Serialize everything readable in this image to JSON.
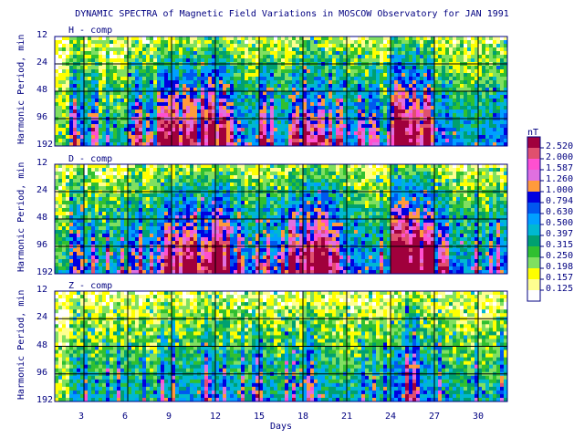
{
  "title": "DYNAMIC SPECTRA of Magnetic Field Variations in MOSCOW Observatory for JAN 1991",
  "chart_data": {
    "type": "heatmap",
    "xlabel": "Days",
    "ylabel": "Harmonic Period, min",
    "x_ticks": [
      3,
      6,
      9,
      12,
      15,
      18,
      21,
      24,
      27,
      30
    ],
    "x_range": [
      1,
      32
    ],
    "y_ticks": [
      12,
      24,
      48,
      96,
      192
    ],
    "y_scale": "log",
    "panels": [
      {
        "label": "H - comp",
        "activity": [
          0.1,
          0.55,
          0.35,
          0.2,
          0.25,
          0.5,
          0.3,
          0.6,
          0.65,
          0.55,
          0.8,
          0.7,
          0.5,
          0.4,
          0.55,
          0.35,
          0.55,
          0.75,
          0.5,
          0.45,
          0.45,
          0.35,
          0.3,
          0.85,
          0.9,
          0.75,
          0.45,
          0.35,
          0.3,
          0.35,
          0.45
        ]
      },
      {
        "label": "D - comp",
        "activity": [
          0.2,
          0.6,
          0.4,
          0.3,
          0.35,
          0.55,
          0.4,
          0.65,
          0.75,
          0.65,
          0.85,
          0.85,
          0.6,
          0.45,
          0.5,
          0.5,
          0.7,
          0.85,
          0.8,
          0.55,
          0.45,
          0.4,
          0.35,
          0.9,
          0.95,
          0.8,
          0.5,
          0.4,
          0.35,
          0.35,
          0.45
        ]
      },
      {
        "label": "Z - comp",
        "activity": [
          0.05,
          0.3,
          0.25,
          0.2,
          0.3,
          0.25,
          0.2,
          0.35,
          0.35,
          0.3,
          0.45,
          0.35,
          0.3,
          0.25,
          0.3,
          0.25,
          0.3,
          0.4,
          0.3,
          0.25,
          0.25,
          0.2,
          0.2,
          0.45,
          0.65,
          0.4,
          0.3,
          0.25,
          0.2,
          0.2,
          0.25
        ]
      }
    ],
    "colorbar": {
      "unit": "nT",
      "labels": [
        "2.520",
        "2.000",
        "1.587",
        "1.260",
        "1.000",
        "0.794",
        "0.630",
        "0.500",
        "0.397",
        "0.315",
        "0.250",
        "0.198",
        "0.157",
        "0.125"
      ],
      "colors": [
        "#a0003c",
        "#e0506e",
        "#ff50d0",
        "#e070e0",
        "#ff9a3c",
        "#0000e0",
        "#0058f0",
        "#00a0ff",
        "#00b8d0",
        "#00a070",
        "#30c030",
        "#80e060",
        "#ffff00",
        "#ffff90",
        "#ffffff"
      ]
    }
  }
}
